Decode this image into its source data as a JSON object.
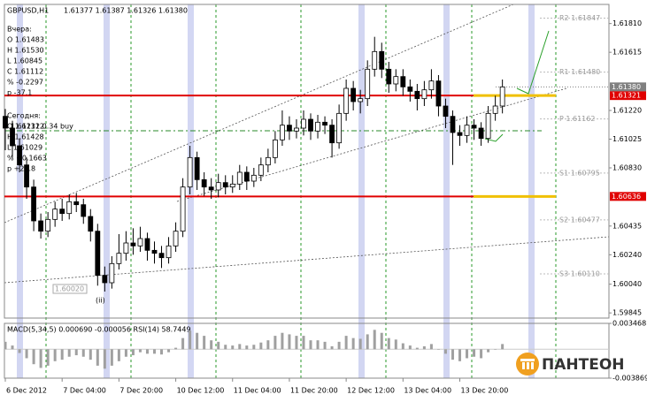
{
  "chart_data": {
    "type": "candlestick",
    "title": "GBPUSD,H1",
    "quote": "1.61377 1.61387 1.61326 1.61380",
    "info_yesterday": [
      "Вчера:",
      "O 1.61483",
      "H 1.61530",
      "L 1.60845",
      "C 1.61112",
      "% -0.2297",
      "p -37.1"
    ],
    "info_today": [
      "Сегодня:",
      "O 1.61112",
      "H 1.61428",
      "L 1.61029",
      "% +0.1663",
      "p +26.8"
    ],
    "signal": "1.61232 0.34 buy",
    "wave_label": "(ii)",
    "low_label": "1.60020",
    "logo": "ПАНТЕОН",
    "ylim": [
      1.5981,
      1.6194
    ],
    "xlim": [
      -0.125,
      85
    ],
    "yticks": [
      {
        "value": 1.6181,
        "label": "1.61810"
      },
      {
        "value": 1.61615,
        "label": "1.61615"
      },
      {
        "value": 1.6122,
        "label": "1.61220"
      },
      {
        "value": 1.61025,
        "label": "1.61025"
      },
      {
        "value": 1.6083,
        "label": "1.60830"
      },
      {
        "value": 1.60435,
        "label": "1.60435"
      },
      {
        "value": 1.6024,
        "label": "1.60240"
      },
      {
        "value": 1.6004,
        "label": "1.60040"
      },
      {
        "value": 1.59845,
        "label": "1.59845"
      }
    ],
    "xticks": [
      {
        "value": 0,
        "label": "6 Dec 2012"
      },
      {
        "value": 8,
        "label": "7 Dec 04:00"
      },
      {
        "value": 16,
        "label": "7 Dec 20:00"
      },
      {
        "value": 24,
        "label": "10 Dec 12:00"
      },
      {
        "value": 32,
        "label": "11 Dec 04:00"
      },
      {
        "value": 40,
        "label": "11 Dec 20:00"
      },
      {
        "value": 48,
        "label": "12 Dec 12:00"
      },
      {
        "value": 56,
        "label": "13 Dec 04:00"
      },
      {
        "value": 64,
        "label": "13 Dec 20:00"
      }
    ],
    "current": {
      "value": 1.6138,
      "label": "1.61380",
      "color": "#808080"
    },
    "levels": [
      {
        "value": 1.61321,
        "label": "1.61321",
        "color": "#e00000"
      },
      {
        "value": 1.60636,
        "label": "1.60636",
        "color": "#e00000"
      }
    ],
    "pivots": [
      {
        "value": 1.61847,
        "label": "R2 1.61847"
      },
      {
        "value": 1.6148,
        "label": "R1 1.61480"
      },
      {
        "value": 1.61162,
        "label": "P 1.61162"
      },
      {
        "value": 1.60795,
        "label": "S1 1.60795"
      },
      {
        "value": 1.60477,
        "label": "S2 1.60477"
      },
      {
        "value": 1.6011,
        "label": "S3 1.60110"
      }
    ],
    "open": [
      1.6118,
      1.611,
      1.6098,
      1.6085,
      1.607,
      1.6047,
      1.604,
      1.6048,
      1.6055,
      1.6052,
      1.606,
      1.6058,
      1.605,
      1.604,
      1.601,
      1.6005,
      1.6018,
      1.6025,
      1.6032,
      1.603,
      1.6035,
      1.6027,
      1.6025,
      1.6022,
      1.603,
      1.604,
      1.607,
      1.609,
      1.6075,
      1.607,
      1.6068,
      1.6073,
      1.607,
      1.6072,
      1.608,
      1.6074,
      1.6078,
      1.6085,
      1.609,
      1.6102,
      1.6112,
      1.6108,
      1.611,
      1.6116,
      1.6108,
      1.6114,
      1.6112,
      1.61,
      1.612,
      1.6137,
      1.6128,
      1.613,
      1.615,
      1.6162,
      1.615,
      1.614,
      1.6145,
      1.6138,
      1.6135,
      1.613,
      1.6136,
      1.6142,
      1.6125,
      1.6118,
      1.6107,
      1.6105,
      1.6112,
      1.611,
      1.6103,
      1.612,
      1.6125
    ],
    "high": [
      1.6123,
      1.6115,
      1.6103,
      1.609,
      1.6075,
      1.6052,
      1.6053,
      1.606,
      1.6062,
      1.6065,
      1.6066,
      1.6062,
      1.6055,
      1.6045,
      1.6016,
      1.6023,
      1.6038,
      1.604,
      1.6042,
      1.6043,
      1.6039,
      1.6033,
      1.603,
      1.6036,
      1.6046,
      1.6076,
      1.6098,
      1.6094,
      1.608,
      1.6076,
      1.6079,
      1.6078,
      1.6078,
      1.6085,
      1.6084,
      1.6083,
      1.609,
      1.6096,
      1.6108,
      1.6122,
      1.6118,
      1.6116,
      1.6122,
      1.612,
      1.6119,
      1.6118,
      1.6116,
      1.6126,
      1.6143,
      1.6142,
      1.6136,
      1.6156,
      1.6172,
      1.6168,
      1.6155,
      1.615,
      1.615,
      1.6143,
      1.614,
      1.6142,
      1.615,
      1.6146,
      1.613,
      1.6122,
      1.6112,
      1.6118,
      1.6116,
      1.6114,
      1.6125,
      1.6132,
      1.6143
    ],
    "low": [
      1.6095,
      1.609,
      1.608,
      1.6062,
      1.604,
      1.6035,
      1.6036,
      1.6043,
      1.6047,
      1.6048,
      1.6053,
      1.6045,
      1.6033,
      1.6003,
      1.5999,
      1.6001,
      1.6014,
      1.602,
      1.6024,
      1.6026,
      1.602,
      1.6018,
      1.6015,
      1.6018,
      1.6026,
      1.6036,
      1.6065,
      1.6068,
      1.6064,
      1.6062,
      1.6063,
      1.6065,
      1.6066,
      1.6068,
      1.6068,
      1.607,
      1.6074,
      1.608,
      1.6086,
      1.6098,
      1.6102,
      1.6103,
      1.6105,
      1.6102,
      1.6103,
      1.6106,
      1.609,
      1.6096,
      1.6115,
      1.6122,
      1.612,
      1.6125,
      1.6145,
      1.6144,
      1.6134,
      1.6135,
      1.6132,
      1.6128,
      1.6122,
      1.6125,
      1.613,
      1.6118,
      1.611,
      1.6085,
      1.6098,
      1.61,
      1.6102,
      1.6098,
      1.61,
      1.6115,
      1.612
    ],
    "close": [
      1.611,
      1.6098,
      1.6085,
      1.607,
      1.6047,
      1.604,
      1.6048,
      1.6055,
      1.6052,
      1.606,
      1.6058,
      1.605,
      1.604,
      1.601,
      1.6005,
      1.6018,
      1.6025,
      1.6032,
      1.603,
      1.6035,
      1.6027,
      1.6025,
      1.6022,
      1.603,
      1.604,
      1.607,
      1.609,
      1.6075,
      1.607,
      1.6068,
      1.6073,
      1.607,
      1.6072,
      1.608,
      1.6074,
      1.6078,
      1.6085,
      1.609,
      1.6102,
      1.6112,
      1.6108,
      1.611,
      1.6116,
      1.6108,
      1.6114,
      1.6112,
      1.61,
      1.612,
      1.6137,
      1.6128,
      1.613,
      1.615,
      1.6162,
      1.615,
      1.614,
      1.6145,
      1.6138,
      1.6135,
      1.613,
      1.6136,
      1.6142,
      1.6125,
      1.6118,
      1.6107,
      1.6105,
      1.6112,
      1.611,
      1.6103,
      1.612,
      1.6125,
      1.6138
    ],
    "indicator": {
      "label": "MACD(5,34,5) 0.000690 -0.000056 RSI(14) 58.7449",
      "ylim": [
        -0.003869,
        0.003468
      ],
      "yticks": [
        {
          "value": 0.003468,
          "label": "0.003468"
        },
        {
          "value": -0.003869,
          "label": "-0.003869"
        }
      ],
      "color": "#a0a0a0",
      "values": [
        0.001,
        0.0005,
        -0.0005,
        -0.0012,
        -0.002,
        -0.0025,
        -0.0022,
        -0.0016,
        -0.0014,
        -0.001,
        -0.0008,
        -0.001,
        -0.0014,
        -0.0022,
        -0.0026,
        -0.0022,
        -0.0016,
        -0.001,
        -0.0008,
        -0.0004,
        -0.0006,
        -0.0006,
        -0.0007,
        -0.0004,
        0.0002,
        0.0015,
        0.0025,
        0.0022,
        0.0018,
        0.0012,
        0.001,
        0.0006,
        0.0005,
        0.0007,
        0.0005,
        0.0006,
        0.0009,
        0.0012,
        0.0018,
        0.0022,
        0.002,
        0.0018,
        0.0018,
        0.0012,
        0.0012,
        0.001,
        0.0004,
        0.001,
        0.0018,
        0.0015,
        0.0014,
        0.002,
        0.0026,
        0.0022,
        0.0015,
        0.0013,
        0.0008,
        0.0005,
        0.0002,
        0.0004,
        0.0007,
        0.0,
        -0.0006,
        -0.0014,
        -0.0016,
        -0.0012,
        -0.001,
        -0.0012,
        -0.0004,
        0.0,
        0.0007
      ]
    }
  }
}
